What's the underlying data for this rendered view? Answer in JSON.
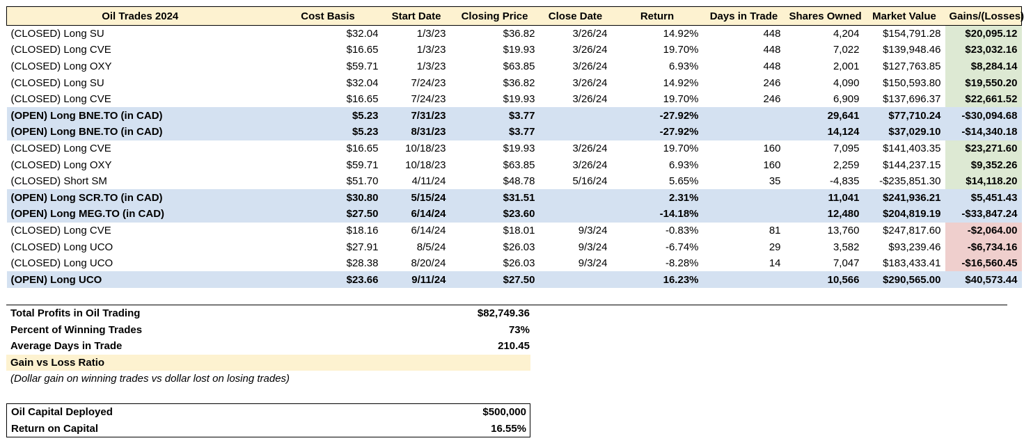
{
  "table": {
    "headers": [
      "Oil Trades 2024",
      "Cost Basis",
      "Start Date",
      "Closing Price",
      "Close Date",
      "Return",
      "Days in Trade",
      "Shares Owned",
      "Market Value",
      "Gains/(Losses)"
    ],
    "rows": [
      {
        "status": "closed",
        "gl": "pos",
        "cells": [
          "(CLOSED) Long SU",
          "$32.04",
          "1/3/23",
          "$36.82",
          "3/26/24",
          "14.92%",
          "448",
          "4,204",
          "$154,791.28",
          "$20,095.12"
        ]
      },
      {
        "status": "closed",
        "gl": "pos",
        "cells": [
          "(CLOSED) Long CVE",
          "$16.65",
          "1/3/23",
          "$19.93",
          "3/26/24",
          "19.70%",
          "448",
          "7,022",
          "$139,948.46",
          "$23,032.16"
        ]
      },
      {
        "status": "closed",
        "gl": "pos",
        "cells": [
          "(CLOSED) Long OXY",
          "$59.71",
          "1/3/23",
          "$63.85",
          "3/26/24",
          "6.93%",
          "448",
          "2,001",
          "$127,763.85",
          "$8,284.14"
        ]
      },
      {
        "status": "closed",
        "gl": "pos",
        "cells": [
          "(CLOSED) Long SU",
          "$32.04",
          "7/24/23",
          "$36.82",
          "3/26/24",
          "14.92%",
          "246",
          "4,090",
          "$150,593.80",
          "$19,550.20"
        ]
      },
      {
        "status": "closed",
        "gl": "pos",
        "cells": [
          "(CLOSED) Long CVE",
          "$16.65",
          "7/24/23",
          "$19.93",
          "3/26/24",
          "19.70%",
          "246",
          "6,909",
          "$137,696.37",
          "$22,661.52"
        ]
      },
      {
        "status": "open",
        "gl": "neg",
        "cells": [
          "(OPEN) Long BNE.TO (in CAD)",
          "$5.23",
          "7/31/23",
          "$3.77",
          "",
          "-27.92%",
          "",
          "29,641",
          "$77,710.24",
          "-$30,094.68"
        ]
      },
      {
        "status": "open",
        "gl": "neg",
        "cells": [
          "(OPEN) Long BNE.TO (in CAD)",
          "$5.23",
          "8/31/23",
          "$3.77",
          "",
          "-27.92%",
          "",
          "14,124",
          "$37,029.10",
          "-$14,340.18"
        ]
      },
      {
        "status": "closed",
        "gl": "pos",
        "cells": [
          "(CLOSED) Long CVE",
          "$16.65",
          "10/18/23",
          "$19.93",
          "3/26/24",
          "19.70%",
          "160",
          "7,095",
          "$141,403.35",
          "$23,271.60"
        ]
      },
      {
        "status": "closed",
        "gl": "pos",
        "cells": [
          "(CLOSED) Long OXY",
          "$59.71",
          "10/18/23",
          "$63.85",
          "3/26/24",
          "6.93%",
          "160",
          "2,259",
          "$144,237.15",
          "$9,352.26"
        ]
      },
      {
        "status": "closed",
        "gl": "pos",
        "cells": [
          "(CLOSED) Short SM",
          "$51.70",
          "4/11/24",
          "$48.78",
          "5/16/24",
          "5.65%",
          "35",
          "-4,835",
          "-$235,851.30",
          "$14,118.20"
        ]
      },
      {
        "status": "open",
        "gl": "pos",
        "cells": [
          "(OPEN) Long SCR.TO (in CAD)",
          "$30.80",
          "5/15/24",
          "$31.51",
          "",
          "2.31%",
          "",
          "11,041",
          "$241,936.21",
          "$5,451.43"
        ]
      },
      {
        "status": "open",
        "gl": "neg",
        "cells": [
          "(OPEN) Long MEG.TO (in CAD)",
          "$27.50",
          "6/14/24",
          "$23.60",
          "",
          "-14.18%",
          "",
          "12,480",
          "$204,819.19",
          "-$33,847.24"
        ]
      },
      {
        "status": "closed",
        "gl": "neg",
        "cells": [
          "(CLOSED) Long CVE",
          "$18.16",
          "6/14/24",
          "$18.01",
          "9/3/24",
          "-0.83%",
          "81",
          "13,760",
          "$247,817.60",
          "-$2,064.00"
        ]
      },
      {
        "status": "closed",
        "gl": "neg",
        "cells": [
          "(CLOSED) Long UCO",
          "$27.91",
          "8/5/24",
          "$26.03",
          "9/3/24",
          "-6.74%",
          "29",
          "3,582",
          "$93,239.46",
          "-$6,734.16"
        ]
      },
      {
        "status": "closed",
        "gl": "neg",
        "cells": [
          "(CLOSED) Long UCO",
          "$28.38",
          "8/20/24",
          "$26.03",
          "9/3/24",
          "-8.28%",
          "14",
          "7,047",
          "$183,433.41",
          "-$16,560.45"
        ]
      },
      {
        "status": "open",
        "gl": "pos",
        "cells": [
          "(OPEN) Long UCO",
          "$23.66",
          "9/11/24",
          "$27.50",
          "",
          "16.23%",
          "",
          "10,566",
          "$290,565.00",
          "$40,573.44"
        ]
      }
    ]
  },
  "summary": {
    "total_profits_label": "Total Profits in Oil Trading",
    "total_profits_value": "$82,749.36",
    "win_pct_label": "Percent of Winning Trades",
    "win_pct_value": "73%",
    "avg_days_label": "Average Days in Trade",
    "avg_days_value": "210.45",
    "gain_loss_label": "Gain vs Loss Ratio",
    "gain_loss_value": "",
    "note": "(Dollar gain on winning trades vs dollar lost on losing trades)"
  },
  "capital": {
    "deployed_label": "Oil Capital Deployed",
    "deployed_value": "$500,000",
    "return_label": "Return on Capital",
    "return_value": "16.55%"
  },
  "colors": {
    "header_bg": "#fdf2d0",
    "open_row_bg": "#d4e1f1",
    "gain_bg": "#dde9d3",
    "loss_bg": "#efcfcd"
  }
}
